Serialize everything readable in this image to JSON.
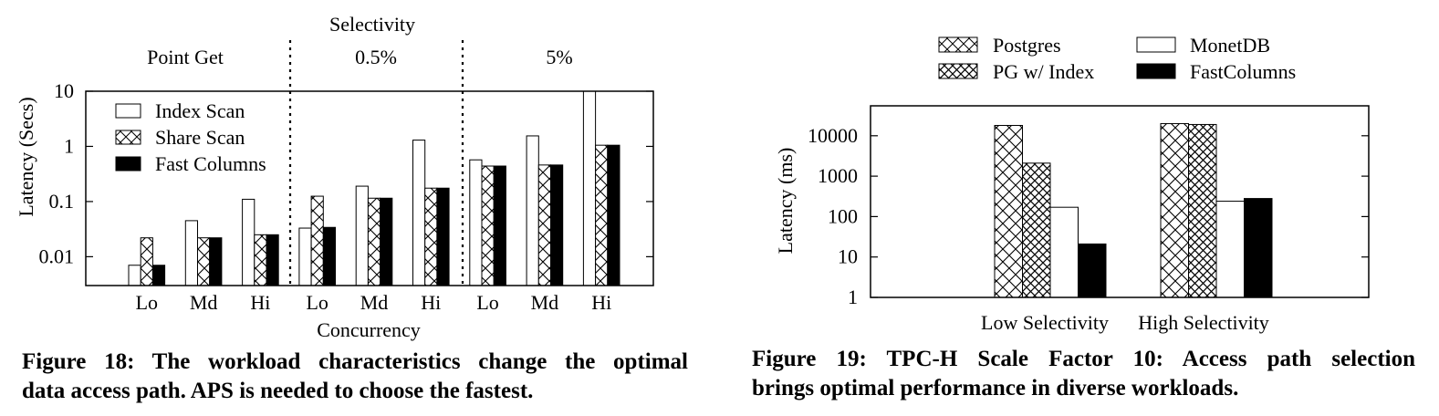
{
  "chart_data": [
    {
      "type": "bar",
      "log_scale_y": true,
      "ylabel": "Latency (Secs)",
      "xlabel": "Concurrency",
      "top_label": "Selectivity",
      "groups": [
        "Point Get",
        "0.5%",
        "5%"
      ],
      "categories": [
        "Lo",
        "Md",
        "Hi",
        "Lo",
        "Md",
        "Hi",
        "Lo",
        "Md",
        "Hi"
      ],
      "yticks": [
        0.01,
        0.1,
        1,
        10
      ],
      "ytick_labels": [
        "0.01",
        "0.1",
        "1",
        "10"
      ],
      "ylim": [
        0.003,
        10
      ],
      "series": [
        {
          "name": "Index Scan",
          "fill": "white",
          "values": [
            0.007,
            0.045,
            0.11,
            0.033,
            0.19,
            1.3,
            0.57,
            1.55,
            10
          ]
        },
        {
          "name": "Share Scan",
          "fill": "crosshatch",
          "values": [
            0.022,
            0.022,
            0.025,
            0.125,
            0.115,
            0.175,
            0.44,
            0.46,
            1.05
          ]
        },
        {
          "name": "Fast Columns",
          "fill": "black",
          "values": [
            0.007,
            0.022,
            0.025,
            0.034,
            0.115,
            0.175,
            0.44,
            0.46,
            1.05
          ]
        }
      ],
      "legend_position": "top-left",
      "colors": {
        "bar_fill_dark": "#000000",
        "bar_fill_light": "#ffffff"
      }
    },
    {
      "type": "bar",
      "log_scale_y": true,
      "ylabel": "Latency (ms)",
      "categories": [
        "Low Selectivity",
        "High Selectivity"
      ],
      "yticks": [
        1,
        10,
        100,
        1000,
        10000
      ],
      "ytick_labels": [
        "1",
        "10",
        "100",
        "1000",
        "10000"
      ],
      "ylim": [
        1,
        50000
      ],
      "series": [
        {
          "name": "Postgres",
          "fill": "crosshatch",
          "values": [
            18000,
            20000
          ]
        },
        {
          "name": "PG w/ Index",
          "fill": "dense-crosshatch",
          "values": [
            2100,
            19000
          ]
        },
        {
          "name": "MonetDB",
          "fill": "white",
          "values": [
            170,
            240
          ]
        },
        {
          "name": "FastColumns",
          "fill": "black",
          "values": [
            21,
            280
          ]
        }
      ],
      "legend_position": "top (outside)"
    }
  ],
  "captions": {
    "fig18": [
      "Figure 18:  The workload characteristics change the optimal",
      "data access path. APS is needed to choose the fastest."
    ],
    "fig19": [
      "Figure 19:  TPC-H Scale Factor 10:  Access path selection",
      "brings optimal performance in diverse workloads."
    ]
  }
}
